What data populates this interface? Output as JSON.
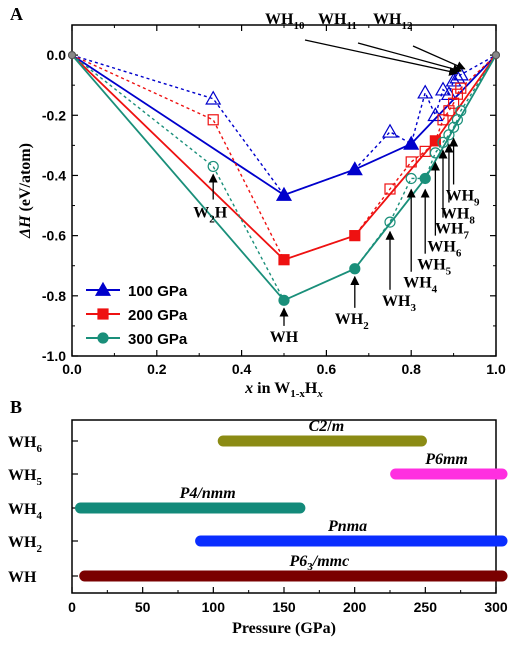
{
  "chart_data": [
    {
      "panel": "A",
      "type": "line",
      "ylabel": "ΔH (eV/atom)",
      "xlabel": "x in W1-xHx",
      "xlim": [
        0,
        1
      ],
      "ylim": [
        -1,
        0.1
      ],
      "xticks": [
        "0.0",
        "0.2",
        "0.4",
        "0.6",
        "0.8",
        "1.0"
      ],
      "yticks": [
        "0.0",
        "-0.2",
        "-0.4",
        "-0.6",
        "-0.8",
        "-1.0"
      ],
      "legend_position": "bottom-left",
      "series": [
        {
          "name": "100 GPa",
          "color": "#0000cc",
          "marker": "triangle",
          "hull_x": [
            0,
            0.5,
            0.667,
            0.8,
            1.0
          ],
          "hull_y": [
            0,
            -0.465,
            -0.38,
            -0.295,
            0
          ],
          "meta_x": [
            0,
            0.333,
            0.5,
            0.667,
            0.75,
            0.8,
            0.833,
            0.857,
            0.875,
            0.889,
            0.9,
            0.909,
            0.917,
            1.0
          ],
          "meta_y": [
            0,
            -0.145,
            -0.465,
            -0.38,
            -0.255,
            -0.295,
            -0.125,
            -0.2,
            -0.115,
            -0.13,
            -0.085,
            -0.075,
            -0.065,
            0
          ]
        },
        {
          "name": "200 GPa",
          "color": "#ee1111",
          "marker": "square",
          "hull_x": [
            0,
            0.5,
            0.667,
            0.857,
            1.0
          ],
          "hull_y": [
            0,
            -0.68,
            -0.6,
            -0.285,
            0
          ],
          "meta_x": [
            0,
            0.333,
            0.5,
            0.667,
            0.75,
            0.8,
            0.833,
            0.857,
            0.875,
            0.889,
            0.9,
            0.909,
            0.917,
            1.0
          ],
          "meta_y": [
            0,
            -0.215,
            -0.68,
            -0.6,
            -0.445,
            -0.355,
            -0.32,
            -0.285,
            -0.215,
            -0.185,
            -0.16,
            -0.13,
            -0.11,
            0
          ]
        },
        {
          "name": "300 GPa",
          "color": "#1a8f7a",
          "marker": "circle",
          "hull_x": [
            0,
            0.5,
            0.667,
            0.833,
            1.0
          ],
          "hull_y": [
            0,
            -0.815,
            -0.71,
            -0.41,
            0
          ],
          "meta_x": [
            0,
            0.333,
            0.5,
            0.667,
            0.75,
            0.8,
            0.833,
            0.857,
            0.875,
            0.889,
            0.9,
            0.909,
            0.917,
            1.0
          ],
          "meta_y": [
            0,
            -0.37,
            -0.815,
            -0.71,
            -0.555,
            -0.41,
            -0.41,
            -0.325,
            -0.29,
            -0.265,
            -0.24,
            -0.215,
            -0.185,
            0
          ]
        }
      ],
      "annotations": [
        {
          "base": "W",
          "sub": "2",
          "tail": "H",
          "x": 0.333,
          "yfrom": -0.48,
          "yto": -0.39
        },
        {
          "base": "WH",
          "sub": "",
          "tail": "",
          "x": 0.5,
          "yfrom": -0.9,
          "yto": -0.835
        },
        {
          "base": "WH",
          "sub": "2",
          "tail": "",
          "x": 0.667,
          "yfrom": -0.84,
          "yto": -0.73
        },
        {
          "base": "WH",
          "sub": "3",
          "tail": "",
          "x": 0.75,
          "yfrom": -0.78,
          "yto": -0.58
        },
        {
          "base": "WH",
          "sub": "4",
          "tail": "",
          "x": 0.8,
          "yfrom": -0.72,
          "yto": -0.44
        },
        {
          "base": "WH",
          "sub": "5",
          "tail": "",
          "x": 0.833,
          "yfrom": -0.66,
          "yto": -0.44
        },
        {
          "base": "WH",
          "sub": "6",
          "tail": "",
          "x": 0.857,
          "yfrom": -0.6,
          "yto": -0.35
        },
        {
          "base": "WH",
          "sub": "7",
          "tail": "",
          "x": 0.875,
          "yfrom": -0.54,
          "yto": -0.31
        },
        {
          "base": "WH",
          "sub": "8",
          "tail": "",
          "x": 0.889,
          "yfrom": -0.49,
          "yto": -0.29
        },
        {
          "base": "WH",
          "sub": "9",
          "tail": "",
          "x": 0.9,
          "yfrom": -0.43,
          "yto": -0.27
        }
      ],
      "top_labels": [
        {
          "base": "WH",
          "sub": "10",
          "x": 0.909
        },
        {
          "base": "WH",
          "sub": "11",
          "x": 0.913
        },
        {
          "base": "WH",
          "sub": "12",
          "x": 0.917
        }
      ]
    },
    {
      "panel": "B",
      "type": "bar",
      "xlabel": "Pressure (GPa)",
      "xlim": [
        0,
        300
      ],
      "xticks": [
        "0",
        "50",
        "100",
        "150",
        "200",
        "250",
        "300"
      ],
      "categories": [
        "WH6",
        "WH5",
        "WH4",
        "WH2",
        "WH"
      ],
      "bars": [
        {
          "phase": "C2/m",
          "start": 107,
          "end": 243,
          "color": "#8b8b14"
        },
        {
          "phase": "P6mm",
          "start": 229,
          "end": 300,
          "color": "#ff2fe0"
        },
        {
          "phase": "P4/nmm",
          "start": 6,
          "end": 157,
          "color": "#138a7a"
        },
        {
          "phase": "Pnma",
          "start": 91,
          "end": 300,
          "color": "#0a2dff"
        },
        {
          "phase": "P63/mmc",
          "start": 9,
          "end": 300,
          "color": "#7a0000"
        }
      ]
    }
  ]
}
